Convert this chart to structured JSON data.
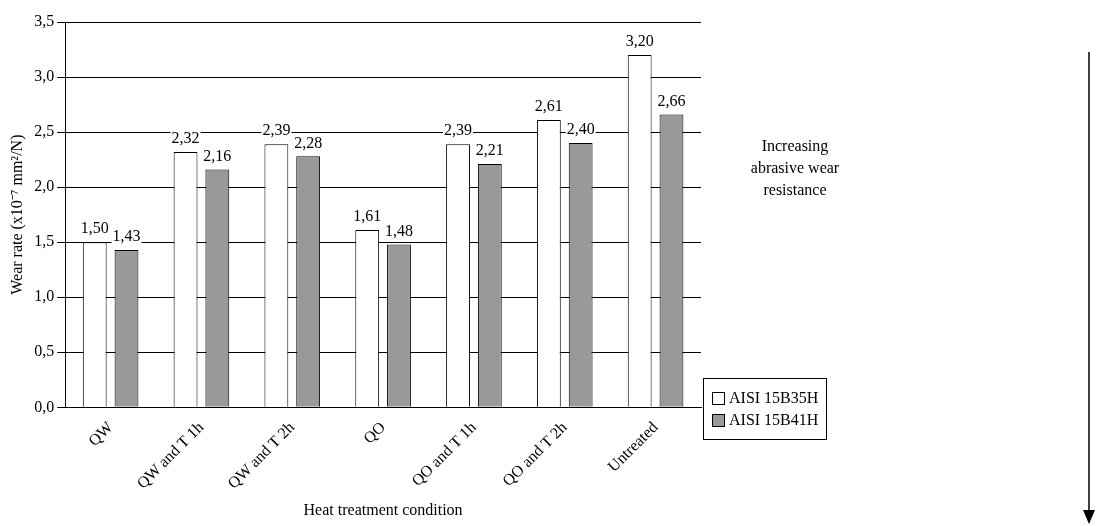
{
  "chart_data": {
    "type": "bar",
    "xlabel": "Heat treatment condition",
    "ylabel": "Wear rate (x10⁻⁷ mm²/N)",
    "categories": [
      "QW",
      "QW and T 1h",
      "QW and T 2h",
      "QO",
      "QO and T 1h",
      "QO and T 2h",
      "Untreated"
    ],
    "series": [
      {
        "name": "AISI 15B35H",
        "color": "#ffffff",
        "values": [
          1.5,
          2.32,
          2.39,
          1.61,
          2.39,
          2.61,
          3.2
        ],
        "value_labels": [
          "1,50",
          "2,32",
          "2,39",
          "1,61",
          "2,39",
          "2,61",
          "3,20"
        ]
      },
      {
        "name": "AISI 15B41H",
        "color": "#999999",
        "values": [
          1.43,
          2.16,
          2.28,
          1.48,
          2.21,
          2.4,
          2.66
        ],
        "value_labels": [
          "1,43",
          "2,16",
          "2,28",
          "1,48",
          "2,21",
          "2,40",
          "2,66"
        ]
      }
    ],
    "ylim": [
      0,
      3.5
    ],
    "yticks": [
      {
        "value": 0,
        "label": "0,0"
      },
      {
        "value": 0.5,
        "label": "0,5"
      },
      {
        "value": 1,
        "label": "1,0"
      },
      {
        "value": 1.5,
        "label": "1,5"
      },
      {
        "value": 2,
        "label": "2,0"
      },
      {
        "value": 2.5,
        "label": "2,5"
      },
      {
        "value": 3,
        "label": "3,0"
      },
      {
        "value": 3.5,
        "label": "3,5"
      }
    ],
    "grid": "y",
    "legend": "bottom right",
    "annotations": [
      "Increasing abrasive wear resistance"
    ]
  }
}
